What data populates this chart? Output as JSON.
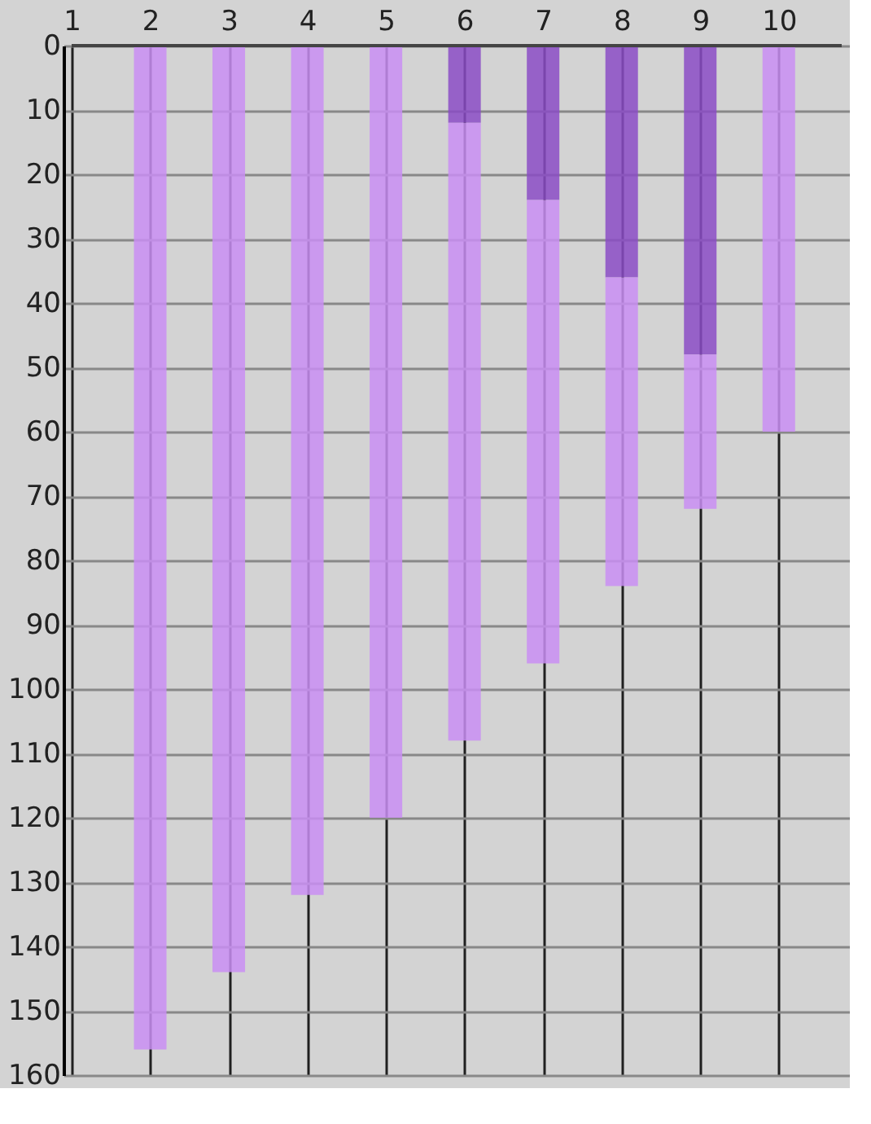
{
  "chart_data": {
    "type": "bar",
    "stacked": true,
    "x": [
      2,
      3,
      4,
      5,
      6,
      7,
      8,
      9,
      10
    ],
    "series": [
      {
        "color": "#8b4cc6",
        "values": [
          0,
          0,
          0,
          0,
          12,
          24,
          36,
          48,
          0
        ]
      },
      {
        "color": "#c98ef3",
        "values": [
          156,
          144,
          132,
          120,
          96,
          72,
          48,
          24,
          60
        ]
      }
    ],
    "xlim": [
      1,
      10.8
    ],
    "xticks": [
      1,
      2,
      3,
      4,
      5,
      6,
      7,
      8,
      9,
      10
    ],
    "ylim": [
      160,
      0
    ],
    "yticks": [
      0,
      10,
      20,
      30,
      40,
      50,
      60,
      70,
      80,
      90,
      100,
      110,
      120,
      130,
      140,
      150,
      160
    ],
    "grid": true
  }
}
